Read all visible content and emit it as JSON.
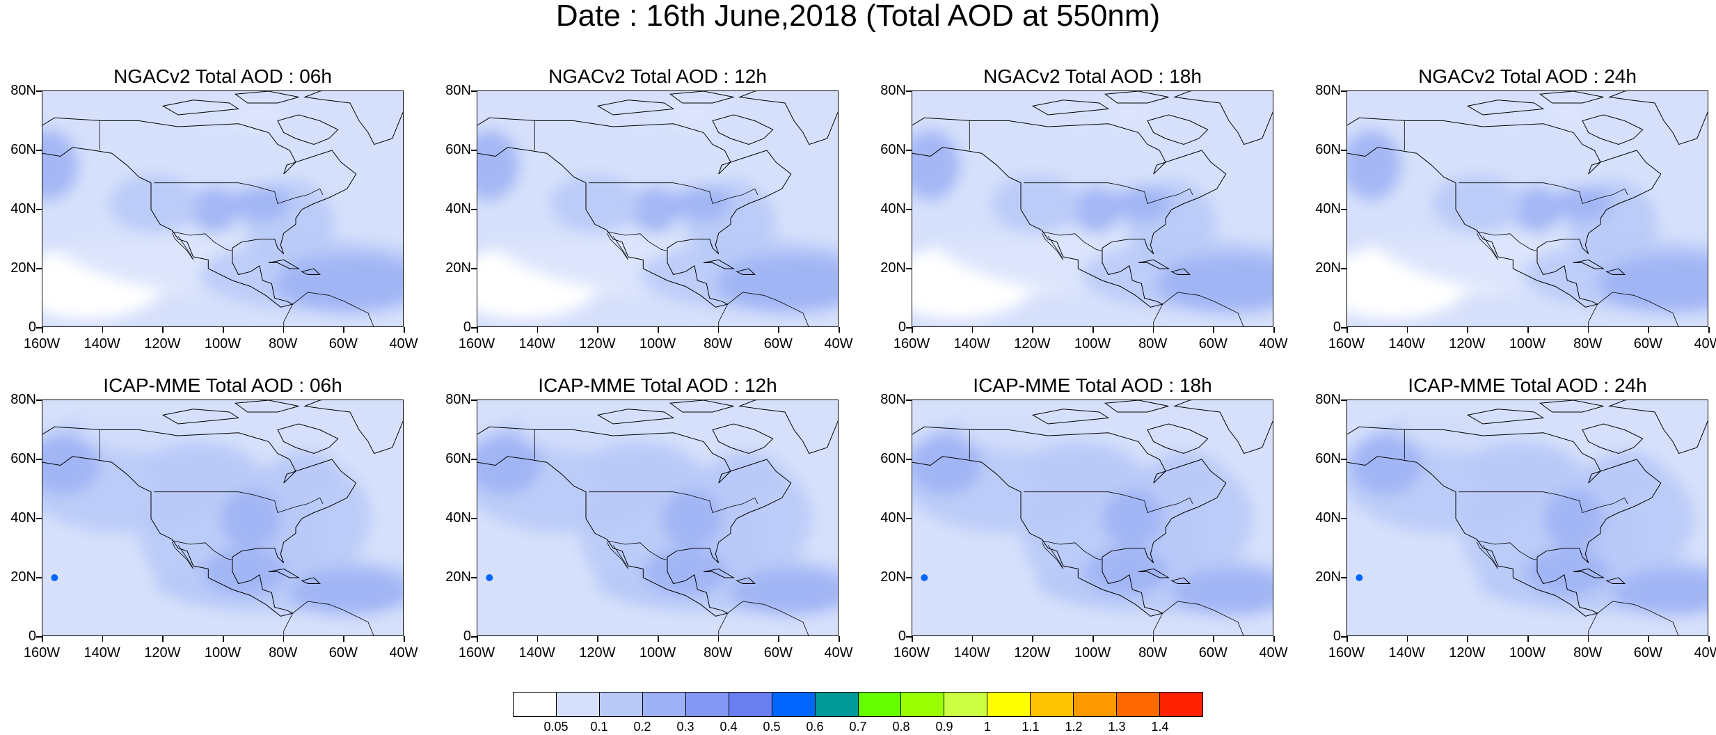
{
  "figure": {
    "title": "Date : 16th June,2018 (Total AOD at 550nm)"
  },
  "axes": {
    "y_ticks": [
      "80N",
      "60N",
      "40N",
      "20N",
      "0"
    ],
    "x_ticks": [
      "160W",
      "140W",
      "120W",
      "100W",
      "80W",
      "60W",
      "40W"
    ],
    "lat_range": [
      0,
      80
    ],
    "lon_range": [
      -160,
      -40
    ]
  },
  "panels": [
    {
      "title": "NGACv2 Total AOD : 06h",
      "model": "NGACv2",
      "hour": "06h"
    },
    {
      "title": "NGACv2 Total AOD : 12h",
      "model": "NGACv2",
      "hour": "12h"
    },
    {
      "title": "NGACv2 Total AOD : 18h",
      "model": "NGACv2",
      "hour": "18h"
    },
    {
      "title": "NGACv2 Total AOD : 24h",
      "model": "NGACv2",
      "hour": "24h"
    },
    {
      "title": "ICAP-MME Total AOD : 06h",
      "model": "ICAP-MME",
      "hour": "06h"
    },
    {
      "title": "ICAP-MME Total AOD : 12h",
      "model": "ICAP-MME",
      "hour": "12h"
    },
    {
      "title": "ICAP-MME Total AOD : 18h",
      "model": "ICAP-MME",
      "hour": "18h"
    },
    {
      "title": "ICAP-MME Total AOD : 24h",
      "model": "ICAP-MME",
      "hour": "24h"
    }
  ],
  "colorbar": {
    "labels": [
      "0.05",
      "0.1",
      "0.2",
      "0.3",
      "0.4",
      "0.5",
      "0.6",
      "0.7",
      "0.8",
      "0.9",
      "1",
      "1.1",
      "1.2",
      "1.3",
      "1.4"
    ],
    "colors": [
      "#ffffff",
      "#d6e0fb",
      "#b9c9f8",
      "#9db1f5",
      "#8497f2",
      "#6a7ef0",
      "#0066ff",
      "#009999",
      "#66ff00",
      "#99ff00",
      "#ccff44",
      "#ffff00",
      "#ffc300",
      "#ff9900",
      "#ff6a00",
      "#ff2200"
    ]
  }
}
